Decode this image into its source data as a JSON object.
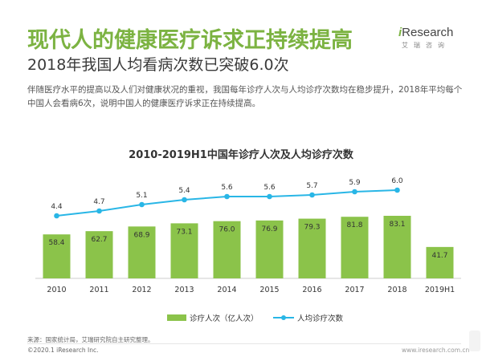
{
  "header": {
    "headline": "现代人的健康医疗诉求正持续提高",
    "subhead": "2018年我国人均看病次数已突破6.0次",
    "intro": "伴随医疗水平的提高以及人们对健康状况的重视，我国每年诊疗人次与人均诊疗次数均在稳步提升，2018年平均每个中国人会看病6次，说明中国人的健康医疗诉求正在持续提高。"
  },
  "logo": {
    "text_prefix": "i",
    "text_main": "Research",
    "sub": "艾瑞咨询"
  },
  "footer": {
    "source": "来源：国家统计局，艾瑞研究院自主研究整理。",
    "copyright": "©2020.1 iResearch Inc.",
    "website": "www.iresearch.com.cn"
  },
  "colors": {
    "headline": "#7cb342",
    "bar": "#8bc34a",
    "line": "#29b6e6",
    "text": "#333333"
  },
  "chart_data": {
    "type": "bar",
    "title": "2010-2019H1中国年诊疗人次及人均诊疗次数",
    "categories": [
      "2010",
      "2011",
      "2012",
      "2013",
      "2014",
      "2015",
      "2016",
      "2017",
      "2018",
      "2019H1"
    ],
    "series": [
      {
        "name": "诊疗人次（亿人次）",
        "type": "bar",
        "values": [
          58.4,
          62.7,
          68.9,
          73.1,
          76.0,
          76.9,
          79.3,
          81.8,
          83.1,
          41.7
        ],
        "labels": [
          "58.4",
          "62.7",
          "68.9",
          "73.1",
          "76.0",
          "76.9",
          "79.3",
          "81.8",
          "83.1",
          "41.7"
        ]
      },
      {
        "name": "人均诊疗次数",
        "type": "line",
        "values": [
          4.4,
          4.7,
          5.1,
          5.4,
          5.6,
          5.6,
          5.7,
          5.9,
          6.0,
          null
        ],
        "labels": [
          "4.4",
          "4.7",
          "5.1",
          "5.4",
          "5.6",
          "5.6",
          "5.7",
          "5.9",
          "6.0",
          ""
        ]
      }
    ],
    "xlabel": "",
    "ylabel": "",
    "grid": false,
    "legend": "bottom"
  }
}
